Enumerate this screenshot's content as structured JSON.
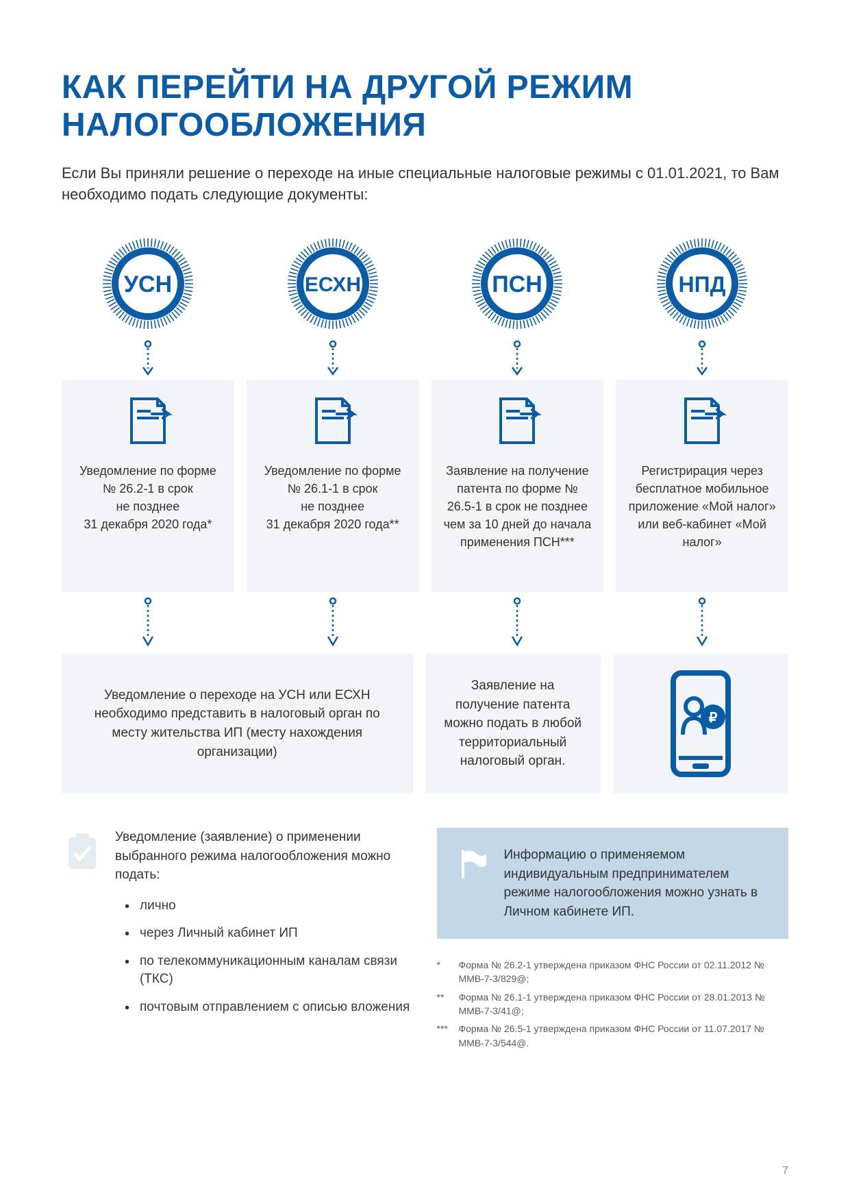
{
  "colors": {
    "accent": "#0b5ba5",
    "accent_mid": "#1368b8",
    "accent_light": "#c3d7e8",
    "panel_bg": "#f1f5f9",
    "icon_light": "#e4ecf2",
    "text": "#333333",
    "page_bg": "#ffffff"
  },
  "title": "КАК ПЕРЕЙТИ НА ДРУГОЙ РЕЖИМ НАЛОГООБЛОЖЕНИЯ",
  "intro": "Если Вы приняли решение о переходе на иные специальные налоговые режимы с 01.01.2021, то Вам необходимо подать следующие документы:",
  "stamps": [
    {
      "label": "УСН"
    },
    {
      "label": "ЕСХН"
    },
    {
      "label": "ПСН"
    },
    {
      "label": "НПД"
    }
  ],
  "cards": [
    {
      "text": "Уведомление по форме № 26.2-1 в срок\nне позднее\n31 декабря 2020 года*"
    },
    {
      "text": "Уведомление по форме № 26.1-1 в срок\nне позднее\n31 декабря 2020 года**"
    },
    {
      "text": "Заявление на получение патента по форме № 26.5-1 в срок не позднее чем за 10 дней до начала применения ПСН***"
    },
    {
      "text": "Регистрирация через бесплатное мобильное приложение «Мой налог» или веб-кабинет «Мой налог»"
    }
  ],
  "sub": {
    "left": "Уведомление о переходе на УСН или ЕСХН необходимо представить в налоговый орган по месту жительства ИП (месту нахождения организации)",
    "mid": "Заявление на получение патента можно подать в любой территориальный налоговый орган."
  },
  "bottom_left": {
    "lead": "Уведомление (заявление) о применении выбранного режима налогообложения можно подать:",
    "bullets": [
      "лично",
      "через Личный кабинет ИП",
      "по телекоммуникационным каналам связи (ТКС)",
      "почтовым отправлением с описью вложения"
    ]
  },
  "bottom_right": {
    "panel": "Информацию о применяемом индивидуальным предпринимателем режиме налогообложения можно узнать в Личном кабинете ИП.",
    "footnotes": [
      {
        "mark": "*",
        "text": "Форма № 26.2-1 утверждена приказом ФНС России от 02.11.2012 № ММВ-7-3/829@;"
      },
      {
        "mark": "**",
        "text": "Форма № 26.1-1 утверждена приказом ФНС России от 28.01.2013 № ММВ-7-3/41@;"
      },
      {
        "mark": "***",
        "text": "Форма № 26.5-1 утверждена приказом ФНС России от 11.07.2017 № ММВ-7-3/544@."
      }
    ]
  },
  "page_number": "7"
}
